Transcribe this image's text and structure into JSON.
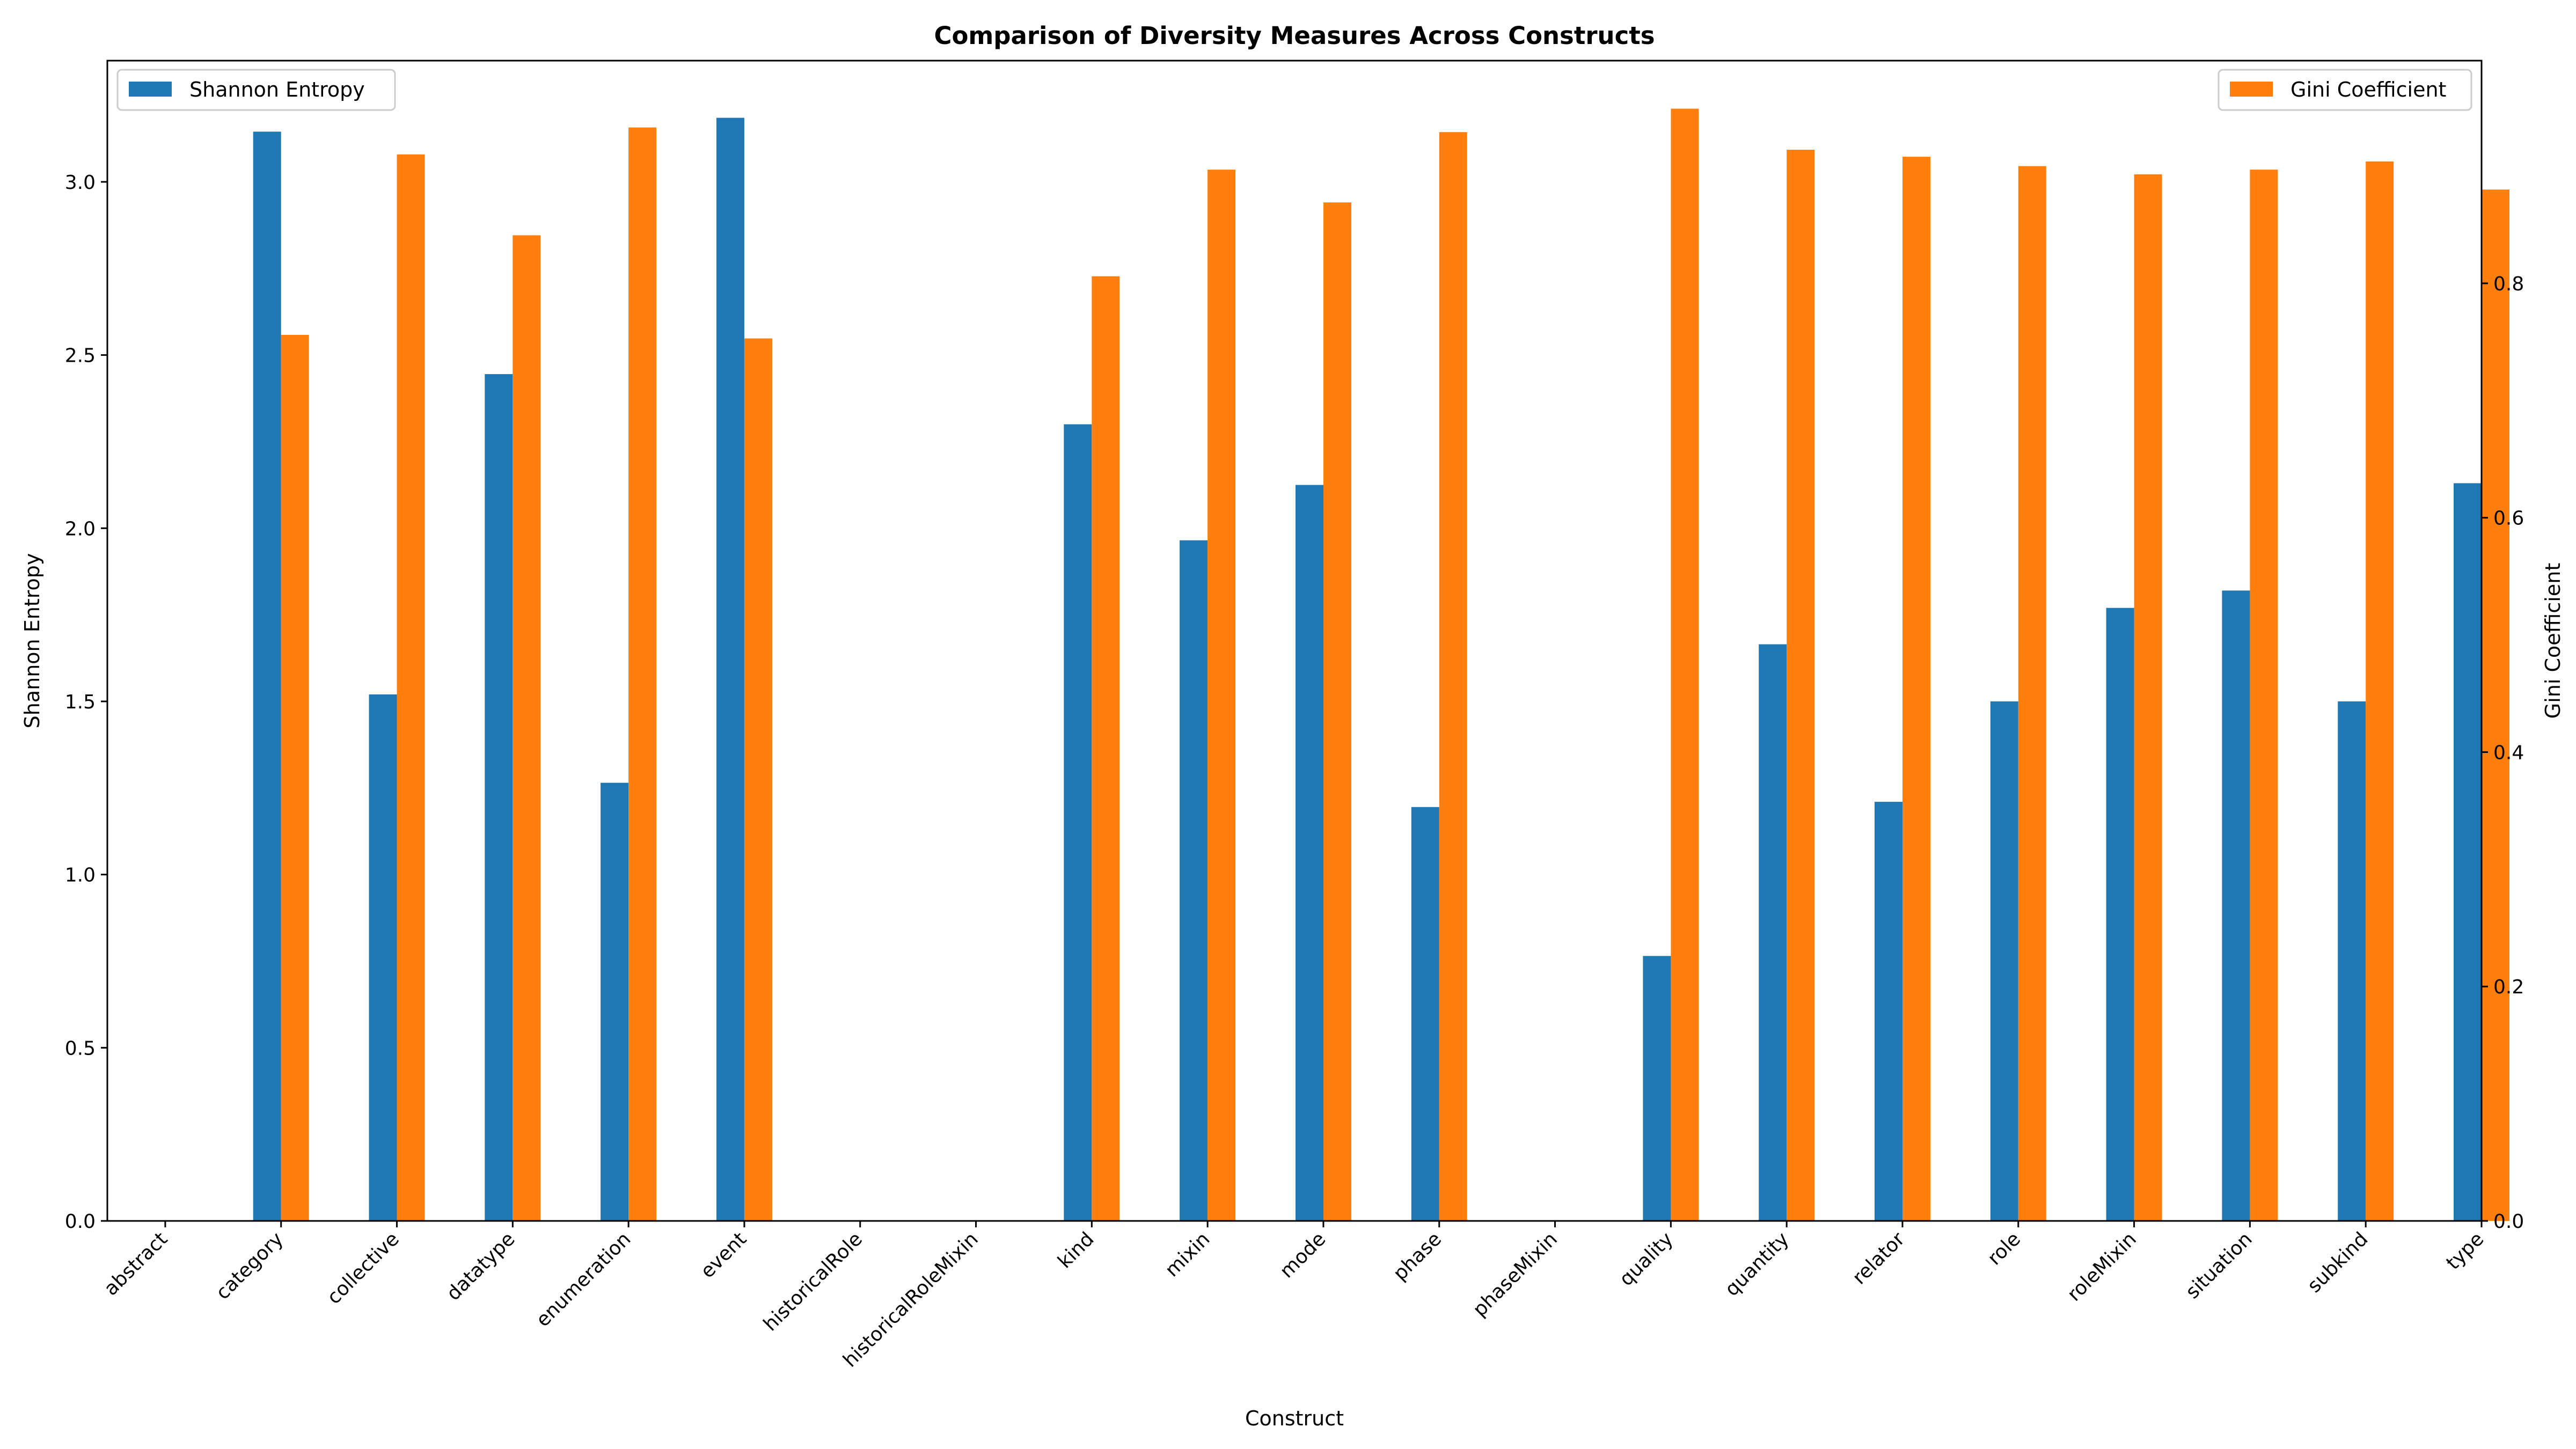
{
  "chart_data": {
    "type": "bar",
    "title": "Comparison of Diversity Measures Across Constructs",
    "xlabel": "Construct",
    "ylabel_left": "Shannon Entropy",
    "ylabel_right": "Gini Coefficient",
    "categories": [
      "abstract",
      "category",
      "collective",
      "datatype",
      "enumeration",
      "event",
      "historicalRole",
      "historicalRoleMixin",
      "kind",
      "mixin",
      "mode",
      "phase",
      "phaseMixin",
      "quality",
      "quantity",
      "relator",
      "role",
      "roleMixin",
      "situation",
      "subkind",
      "type"
    ],
    "series": [
      {
        "name": "Shannon Entropy",
        "axis": "left",
        "color": "#1f77b4",
        "values": [
          0,
          3.145,
          1.52,
          2.445,
          1.265,
          3.185,
          0,
          0,
          2.3,
          1.965,
          2.125,
          1.195,
          0,
          0.765,
          1.665,
          1.21,
          1.5,
          1.77,
          1.82,
          1.5,
          2.13
        ]
      },
      {
        "name": "Gini Coefficient",
        "axis": "right",
        "color": "#ff7f0e",
        "values": [
          0,
          0.756,
          0.91,
          0.841,
          0.933,
          0.753,
          0,
          0,
          0.806,
          0.897,
          0.869,
          0.929,
          0,
          0.949,
          0.914,
          0.908,
          0.9,
          0.893,
          0.897,
          0.904,
          0.88
        ]
      }
    ],
    "ylim_left": [
      0,
      3.35
    ],
    "ylim_right": [
      0,
      0.99
    ],
    "yticks_left": [
      "0.0",
      "0.5",
      "1.0",
      "1.5",
      "2.0",
      "2.5",
      "3.0"
    ],
    "yticks_right": [
      "0.0",
      "0.2",
      "0.4",
      "0.6",
      "0.8"
    ],
    "grid": false,
    "legend_left": "top-left",
    "legend_right": "top-right"
  }
}
